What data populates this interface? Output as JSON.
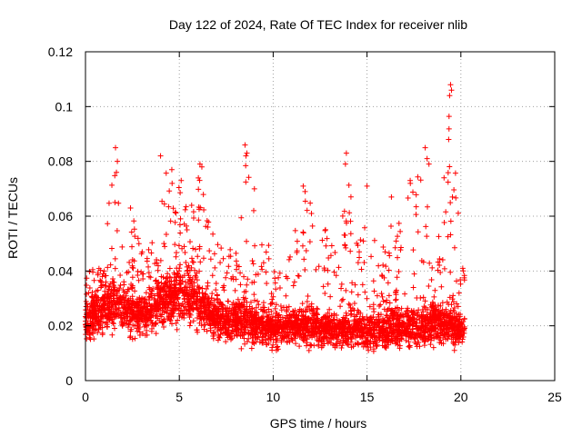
{
  "chart_data": {
    "type": "scatter",
    "title": "Day 122 of 2024, Rate Of TEC Index for receiver nlib",
    "xlabel": "GPS time / hours",
    "ylabel": "ROTI / TECUs",
    "xlim": [
      0,
      25
    ],
    "ylim": [
      0,
      0.12
    ],
    "x_ticks": [
      0,
      5,
      10,
      15,
      20,
      25
    ],
    "y_ticks": [
      0,
      0.02,
      0.04,
      0.06,
      0.08,
      0.1,
      0.12
    ],
    "x_tick_labels": [
      "0",
      "5",
      "10",
      "15",
      "20",
      "25"
    ],
    "y_tick_labels": [
      "0",
      "0.02",
      "0.04",
      "0.06",
      "0.08",
      "0.1",
      "0.12"
    ],
    "grid": true,
    "marker": "+",
    "series": [
      {
        "name": "ROTI",
        "color": "#ff0000",
        "envelope": {
          "description": "dense per-satellite ROTI samples spanning 0 to ~20.2 hours",
          "x": [
            0.0,
            0.5,
            1.0,
            1.5,
            2.0,
            2.5,
            3.0,
            3.5,
            4.0,
            4.5,
            5.0,
            5.5,
            6.0,
            6.5,
            7.0,
            7.5,
            8.0,
            8.5,
            9.0,
            9.5,
            10.0,
            10.5,
            11.0,
            11.5,
            12.0,
            12.5,
            13.0,
            13.5,
            14.0,
            14.5,
            15.0,
            15.5,
            16.0,
            16.5,
            17.0,
            17.5,
            18.0,
            18.5,
            19.0,
            19.5,
            20.0
          ],
          "typical": [
            0.022,
            0.024,
            0.026,
            0.028,
            0.026,
            0.025,
            0.024,
            0.025,
            0.029,
            0.031,
            0.033,
            0.031,
            0.029,
            0.025,
            0.023,
            0.021,
            0.022,
            0.021,
            0.021,
            0.02,
            0.019,
            0.019,
            0.02,
            0.02,
            0.02,
            0.019,
            0.019,
            0.019,
            0.018,
            0.019,
            0.018,
            0.018,
            0.019,
            0.019,
            0.02,
            0.02,
            0.02,
            0.021,
            0.021,
            0.02,
            0.019
          ],
          "upper": [
            0.043,
            0.04,
            0.046,
            0.085,
            0.058,
            0.062,
            0.047,
            0.051,
            0.082,
            0.077,
            0.073,
            0.062,
            0.079,
            0.06,
            0.05,
            0.048,
            0.052,
            0.086,
            0.071,
            0.052,
            0.047,
            0.045,
            0.049,
            0.071,
            0.07,
            0.056,
            0.058,
            0.05,
            0.083,
            0.05,
            0.071,
            0.048,
            0.052,
            0.067,
            0.06,
            0.081,
            0.073,
            0.055,
            0.066,
            0.108,
            0.044
          ],
          "lower": [
            0.008,
            0.01,
            0.011,
            0.012,
            0.011,
            0.01,
            0.011,
            0.012,
            0.013,
            0.013,
            0.014,
            0.013,
            0.012,
            0.011,
            0.01,
            0.009,
            0.009,
            0.008,
            0.008,
            0.008,
            0.008,
            0.008,
            0.008,
            0.009,
            0.008,
            0.008,
            0.008,
            0.008,
            0.008,
            0.008,
            0.007,
            0.006,
            0.005,
            0.006,
            0.007,
            0.007,
            0.007,
            0.007,
            0.006,
            0.007,
            0.009
          ]
        },
        "notable_points": [
          [
            0.9,
            0.038
          ],
          [
            1.0,
            0.04
          ],
          [
            1.6,
            0.085
          ],
          [
            1.7,
            0.08
          ],
          [
            1.65,
            0.076
          ],
          [
            2.4,
            0.063
          ],
          [
            4.0,
            0.082
          ],
          [
            4.6,
            0.077
          ],
          [
            5.1,
            0.073
          ],
          [
            6.1,
            0.079
          ],
          [
            6.2,
            0.078
          ],
          [
            8.5,
            0.086
          ],
          [
            8.6,
            0.083
          ],
          [
            8.55,
            0.082
          ],
          [
            9.0,
            0.07
          ],
          [
            11.6,
            0.071
          ],
          [
            11.7,
            0.069
          ],
          [
            13.9,
            0.083
          ],
          [
            13.85,
            0.079
          ],
          [
            15.0,
            0.071
          ],
          [
            16.3,
            0.067
          ],
          [
            17.3,
            0.073
          ],
          [
            18.1,
            0.085
          ],
          [
            18.2,
            0.081
          ],
          [
            18.3,
            0.079
          ],
          [
            19.35,
            0.088
          ],
          [
            19.45,
            0.108
          ],
          [
            19.5,
            0.106
          ],
          [
            19.4,
            0.104
          ],
          [
            19.55,
            0.067
          ],
          [
            20.1,
            0.041
          ]
        ],
        "x_range": [
          0.0,
          20.2
        ]
      }
    ]
  }
}
